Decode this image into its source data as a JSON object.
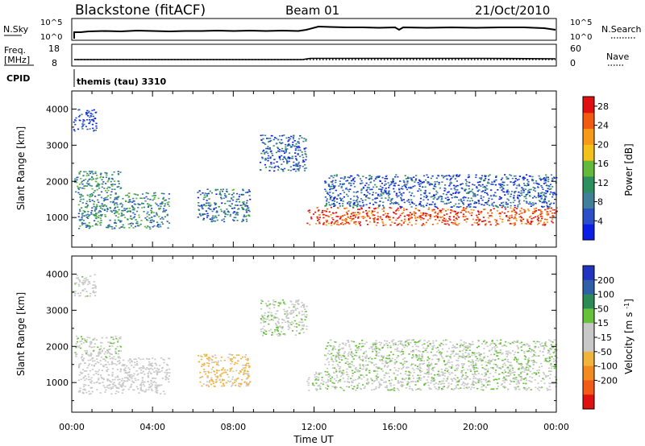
{
  "header": {
    "station": "Blackstone (fitACF)",
    "beam": "Beam 01",
    "date": "21/Oct/2010"
  },
  "top_panels": {
    "nsky_label": "N.Sky",
    "nsky_ticks": [
      "10^5",
      "10^0"
    ],
    "nsearch_label": "N.Search",
    "nsearch_ticks": [
      "10^5",
      "10^0"
    ],
    "freq_label_1": "Freq.",
    "freq_label_2": "[MHz]",
    "freq_ticks": [
      "18",
      "8"
    ],
    "nave_label": "Nave",
    "nave_ticks": [
      "60",
      "0"
    ],
    "cpid_label": "CPID",
    "cpid_value": "themis (tau) 3310"
  },
  "colors": {
    "power_scale": [
      "#0a1ee8",
      "#2a4fc9",
      "#3f7f9a",
      "#2c8f5e",
      "#63b93a",
      "#f2c21a",
      "#f79a18",
      "#f25a10",
      "#e01010"
    ],
    "velocity_scale": [
      "#2233c0",
      "#2e5fa8",
      "#2d8a55",
      "#66c23a",
      "#c8c8c8",
      "#c8c8c8",
      "#f2b33a",
      "#f28a20",
      "#f25a18",
      "#e01010"
    ]
  },
  "chart_data": [
    {
      "type": "heatmap",
      "title": "Power",
      "ylabel": "Slant Range [km]",
      "xlabel": "Time UT",
      "x_ticks": [
        "00:00",
        "04:00",
        "08:00",
        "12:00",
        "16:00",
        "20:00",
        "00:00"
      ],
      "x_range_hours": [
        0,
        24
      ],
      "y_ticks": [
        1000,
        2000,
        3000,
        4000
      ],
      "ylim": [
        180,
        4500
      ],
      "colorbar": {
        "label": "Power [dB]",
        "ticks": [
          4,
          8,
          12,
          16,
          20,
          24,
          28
        ],
        "range": [
          0,
          30
        ]
      },
      "echo_regions": [
        {
          "t_start": 0.05,
          "t_end": 1.2,
          "r_low": 3400,
          "r_high": 4000,
          "dominant_db": 4
        },
        {
          "t_start": 0.1,
          "t_end": 2.4,
          "r_low": 1700,
          "r_high": 2300,
          "dominant_db": 10
        },
        {
          "t_start": 0.3,
          "t_end": 4.8,
          "r_low": 700,
          "r_high": 1700,
          "dominant_db": 10
        },
        {
          "t_start": 6.2,
          "t_end": 8.8,
          "r_low": 900,
          "r_high": 1800,
          "dominant_db": 8
        },
        {
          "t_start": 9.3,
          "t_end": 11.6,
          "r_low": 2300,
          "r_high": 3300,
          "dominant_db": 6
        },
        {
          "t_start": 11.6,
          "t_end": 24.0,
          "r_low": 800,
          "r_high": 1300,
          "dominant_db": 26
        },
        {
          "t_start": 12.5,
          "t_end": 24.0,
          "r_low": 1300,
          "r_high": 2200,
          "dominant_db": 6
        }
      ]
    },
    {
      "type": "heatmap",
      "title": "Velocity",
      "ylabel": "Slant Range [km]",
      "xlabel": "Time UT",
      "x_ticks": [
        "00:00",
        "04:00",
        "08:00",
        "12:00",
        "16:00",
        "20:00",
        "00:00"
      ],
      "x_range_hours": [
        0,
        24
      ],
      "y_ticks": [
        1000,
        2000,
        3000,
        4000
      ],
      "ylim": [
        180,
        4500
      ],
      "colorbar": {
        "label": "Velocity [m s^-1]",
        "ticks": [
          200,
          100,
          50,
          15,
          -15,
          -50,
          -100,
          -200
        ],
        "range": [
          -250,
          250
        ]
      },
      "echo_regions": [
        {
          "t_start": 0.05,
          "t_end": 1.2,
          "r_low": 3400,
          "r_high": 4000,
          "dominant_v": -10
        },
        {
          "t_start": 0.1,
          "t_end": 2.4,
          "r_low": 1700,
          "r_high": 2300,
          "dominant_v": 0
        },
        {
          "t_start": 0.3,
          "t_end": 4.8,
          "r_low": 700,
          "r_high": 1700,
          "dominant_v": -20
        },
        {
          "t_start": 6.2,
          "t_end": 8.8,
          "r_low": 900,
          "r_high": 1800,
          "dominant_v": -60
        },
        {
          "t_start": 9.3,
          "t_end": 11.6,
          "r_low": 2300,
          "r_high": 3300,
          "dominant_v": 0
        },
        {
          "t_start": 11.6,
          "t_end": 24.0,
          "r_low": 800,
          "r_high": 1300,
          "dominant_v": 0
        },
        {
          "t_start": 12.5,
          "t_end": 24.0,
          "r_low": 1300,
          "r_high": 2200,
          "dominant_v": 5
        }
      ]
    }
  ]
}
